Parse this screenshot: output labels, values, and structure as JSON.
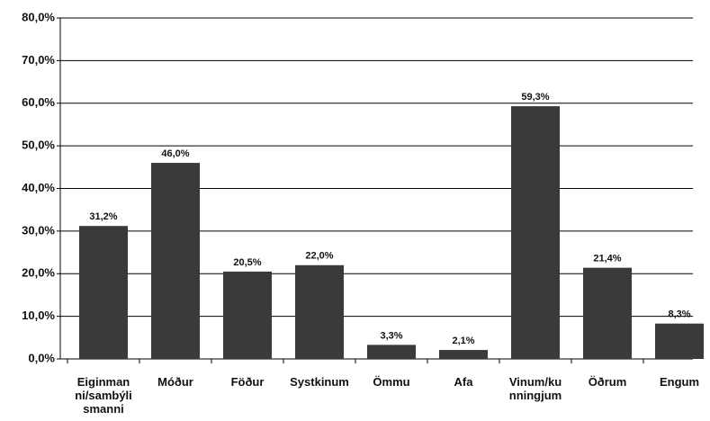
{
  "chart_data": {
    "type": "bar",
    "categories": [
      "Eiginmanni/sambýlismanni",
      "Móður",
      "Föður",
      "Systkinum",
      "Ömmu",
      "Afa",
      "Vinum/kunningjum",
      "Öðrum",
      "Engum"
    ],
    "values": [
      31.2,
      46.0,
      20.5,
      22.0,
      3.3,
      2.1,
      59.3,
      21.4,
      8.3
    ],
    "value_labels": [
      "31,2%",
      "46,0%",
      "20,5%",
      "22,0%",
      "3,3%",
      "2,1%",
      "59,3%",
      "21,4%",
      "8,3%"
    ],
    "color": "#3a3a3a",
    "ylim": [
      0,
      80
    ],
    "yticks": [
      {
        "value": 0,
        "label": "0,0%"
      },
      {
        "value": 10,
        "label": "10,0%"
      },
      {
        "value": 20,
        "label": "20,0%"
      },
      {
        "value": 30,
        "label": "30,0%"
      },
      {
        "value": 40,
        "label": "40,0%"
      },
      {
        "value": 50,
        "label": "50,0%"
      },
      {
        "value": 60,
        "label": "60,0%"
      },
      {
        "value": 70,
        "label": "70,0%"
      },
      {
        "value": 80,
        "label": "80,0%"
      }
    ],
    "grid": true
  }
}
